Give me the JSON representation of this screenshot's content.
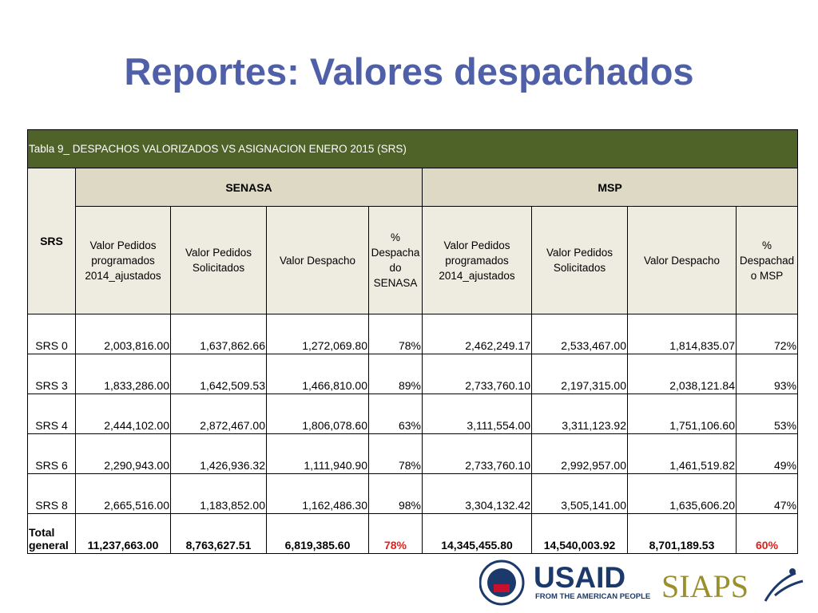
{
  "title": "Reportes: Valores despachados",
  "table": {
    "caption": "Tabla 9_ DESPACHOS VALORIZADOS VS ASIGNACION ENERO 2015 (SRS)",
    "row_header": "SRS",
    "groups": [
      "SENASA",
      "MSP"
    ],
    "columns": [
      "Valor Pedidos programados 2014_ajustados",
      "Valor Pedidos Solicitados",
      "Valor Despacho",
      "% Despacha do SENASA",
      "Valor Pedidos programados 2014_ajustados",
      "Valor Pedidos Solicitados",
      "Valor Despacho",
      "% Despachad o MSP"
    ],
    "rows": [
      [
        "SRS 0",
        "2,003,816.00",
        "1,637,862.66",
        "1,272,069.80",
        "78%",
        "2,462,249.17",
        "2,533,467.00",
        "1,814,835.07",
        "72%"
      ],
      [
        "SRS 3",
        "1,833,286.00",
        "1,642,509.53",
        "1,466,810.00",
        "89%",
        "2,733,760.10",
        "2,197,315.00",
        "2,038,121.84",
        "93%"
      ],
      [
        "SRS 4",
        "2,444,102.00",
        "2,872,467.00",
        "1,806,078.60",
        "63%",
        "3,111,554.00",
        "3,311,123.92",
        "1,751,106.60",
        "53%"
      ],
      [
        "SRS 6",
        "2,290,943.00",
        "1,426,936.32",
        "1,111,940.90",
        "78%",
        "2,733,760.10",
        "2,992,957.00",
        "1,461,519.82",
        "49%"
      ],
      [
        "SRS 8",
        "2,665,516.00",
        "1,183,852.00",
        "1,162,486.30",
        "98%",
        "3,304,132.42",
        "3,505,141.00",
        "1,635,606.20",
        "47%"
      ]
    ],
    "total": [
      "Total general",
      "11,237,663.00",
      "8,763,627.51",
      "6,819,385.60",
      "78%",
      "14,345,455.80",
      "14,540,003.92",
      "8,701,189.53",
      "60%"
    ]
  },
  "logos": {
    "usaid": "USAID",
    "usaid_tagline": "FROM THE AMERICAN PEOPLE",
    "siaps": "SIAPS"
  }
}
